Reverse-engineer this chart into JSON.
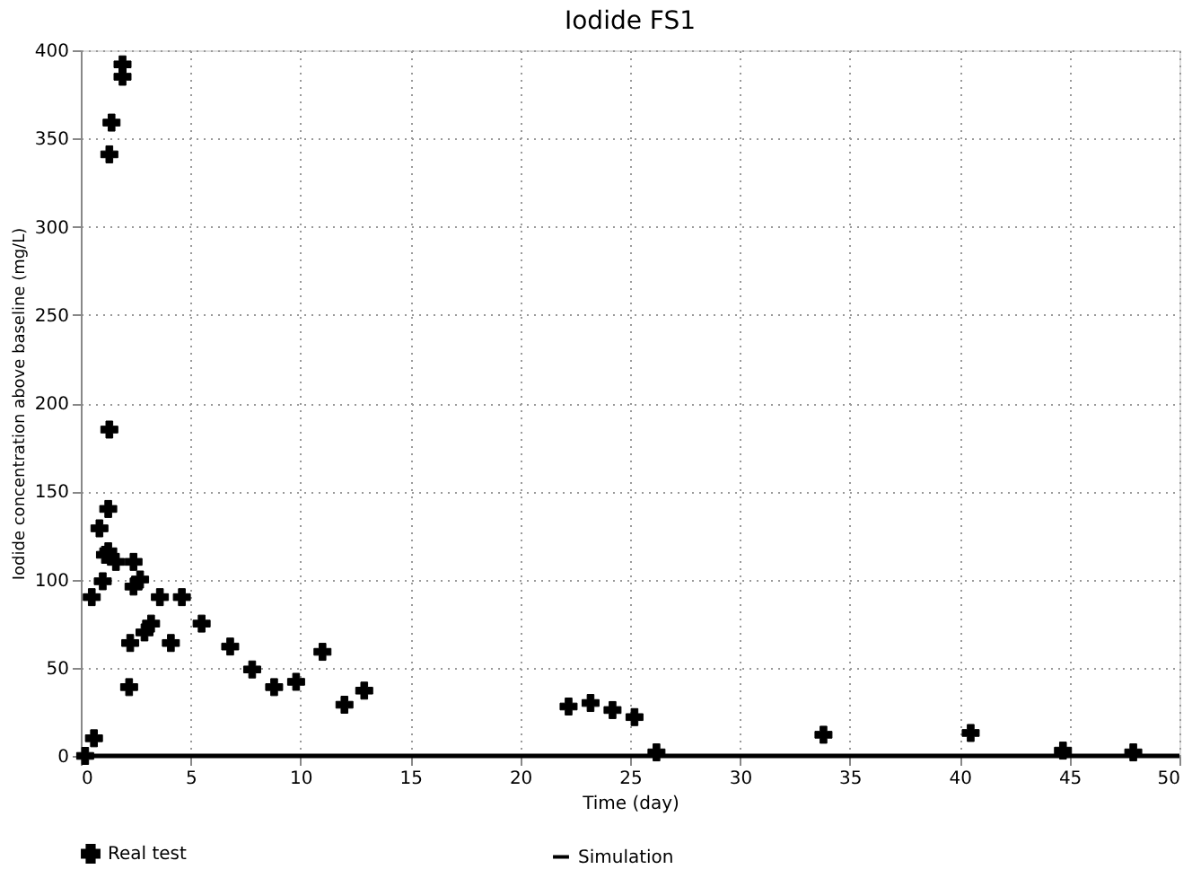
{
  "chart_data": {
    "type": "scatter",
    "title": "Iodide FS1",
    "xlabel": "Time (day)",
    "ylabel": "Iodide concentration above baseline (mg/L)",
    "xlim": [
      0,
      50
    ],
    "xticks": [
      0,
      5,
      10,
      15,
      20,
      25,
      30,
      35,
      40,
      45,
      50
    ],
    "ylim": [
      0,
      400
    ],
    "yticks": [
      0,
      50,
      100,
      150,
      200,
      250,
      300,
      350,
      400
    ],
    "grid": true,
    "legend": "bottom",
    "series": [
      {
        "name": "Real test",
        "type": "scatter",
        "marker": "cross",
        "color": "#000000",
        "x": [
          0.2,
          0.6,
          0.5,
          1.0,
          0.85,
          1.25,
          1.1,
          1.25,
          1.6,
          1.3,
          1.3,
          1.4,
          1.9,
          1.9,
          2.2,
          2.25,
          2.4,
          2.4,
          2.7,
          2.9,
          3.2,
          3.6,
          4.1,
          4.6,
          5.5,
          6.8,
          7.8,
          8.8,
          9.8,
          11.0,
          12.0,
          12.9,
          22.2,
          23.2,
          24.2,
          25.2,
          26.2,
          33.8,
          40.5,
          44.7,
          47.9
        ],
        "values": [
          0,
          10,
          90,
          99,
          129,
          140,
          114,
          116,
          110,
          185,
          341,
          359,
          392,
          385,
          39,
          64,
          110,
          96,
          100,
          70,
          75,
          90,
          64,
          90,
          75,
          62,
          49,
          39,
          42,
          59,
          29,
          37,
          28,
          30,
          26,
          22,
          2,
          12,
          13,
          3,
          2
        ]
      },
      {
        "name": "Simulation",
        "type": "line",
        "marker": "none",
        "line_style": "solid",
        "color": "#000000",
        "x": [
          0,
          50
        ],
        "values": [
          0,
          0
        ]
      }
    ]
  }
}
